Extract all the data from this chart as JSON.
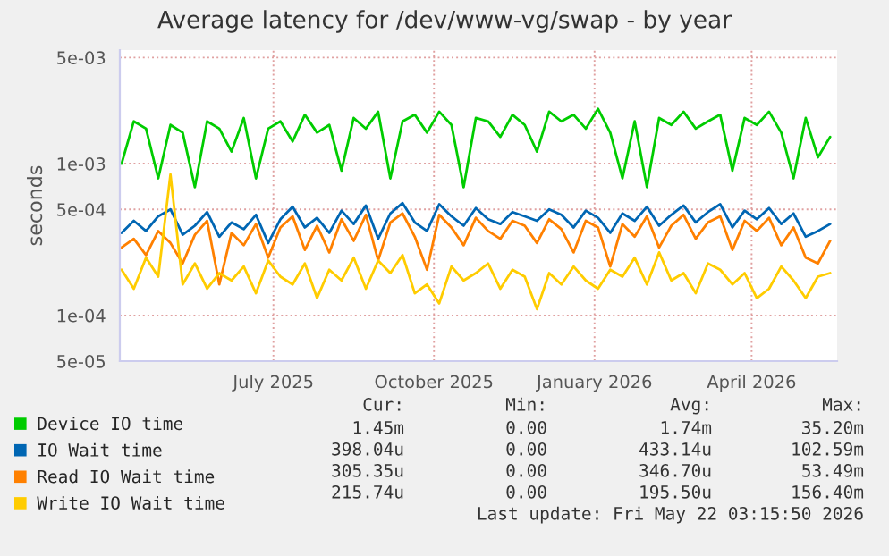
{
  "chart_data": {
    "type": "line",
    "title": "Average latency for /dev/www-vg/swap - by year",
    "ylabel": "seconds",
    "x": [
      "2025-04-05",
      "2025-04-12",
      "2025-04-19",
      "2025-04-26",
      "2025-05-03",
      "2025-05-10",
      "2025-05-17",
      "2025-05-24",
      "2025-05-31",
      "2025-06-07",
      "2025-06-14",
      "2025-06-21",
      "2025-06-28",
      "2025-07-05",
      "2025-07-12",
      "2025-07-19",
      "2025-07-26",
      "2025-08-02",
      "2025-08-09",
      "2025-08-16",
      "2025-08-23",
      "2025-08-30",
      "2025-09-06",
      "2025-09-13",
      "2025-09-20",
      "2025-09-27",
      "2025-10-04",
      "2025-10-11",
      "2025-10-18",
      "2025-10-25",
      "2025-11-01",
      "2025-11-08",
      "2025-11-15",
      "2025-11-22",
      "2025-11-29",
      "2025-12-06",
      "2025-12-13",
      "2025-12-20",
      "2025-12-27",
      "2026-01-03",
      "2026-01-10",
      "2026-01-17",
      "2026-01-24",
      "2026-01-31",
      "2026-02-07",
      "2026-02-14",
      "2026-02-21",
      "2026-02-28",
      "2026-03-07",
      "2026-03-14",
      "2026-03-21",
      "2026-03-28",
      "2026-04-04",
      "2026-04-11",
      "2026-04-18",
      "2026-04-25",
      "2026-05-02",
      "2026-05-09",
      "2026-05-16"
    ],
    "series": [
      {
        "name": "Device IO time",
        "color": "#00cc00",
        "values": [
          0.001,
          0.0019,
          0.0017,
          0.0008,
          0.0018,
          0.0016,
          0.0007,
          0.0019,
          0.0017,
          0.0012,
          0.002,
          0.0008,
          0.0017,
          0.0019,
          0.0014,
          0.0021,
          0.0016,
          0.0018,
          0.0009,
          0.002,
          0.0017,
          0.0022,
          0.0008,
          0.0019,
          0.0021,
          0.0016,
          0.0022,
          0.0018,
          0.0007,
          0.002,
          0.0019,
          0.0015,
          0.0021,
          0.0018,
          0.0012,
          0.0022,
          0.0019,
          0.0021,
          0.0017,
          0.0023,
          0.0016,
          0.0008,
          0.0019,
          0.0007,
          0.002,
          0.0018,
          0.0022,
          0.0017,
          0.0019,
          0.0021,
          0.0009,
          0.002,
          0.0018,
          0.0022,
          0.0016,
          0.0008,
          0.002,
          0.0011,
          0.0015
        ]
      },
      {
        "name": "IO Wait time",
        "color": "#0066b3",
        "values": [
          0.00035,
          0.00042,
          0.00036,
          0.00045,
          0.0005,
          0.00034,
          0.00039,
          0.00048,
          0.00033,
          0.00041,
          0.00037,
          0.00046,
          0.0003,
          0.00043,
          0.00052,
          0.00038,
          0.00044,
          0.00035,
          0.00049,
          0.0004,
          0.00053,
          0.00032,
          0.00047,
          0.00055,
          0.00041,
          0.00036,
          0.00054,
          0.00045,
          0.00039,
          0.00051,
          0.00043,
          0.0004,
          0.00048,
          0.00045,
          0.00042,
          0.0005,
          0.00046,
          0.00038,
          0.00049,
          0.00044,
          0.00035,
          0.00047,
          0.00042,
          0.00052,
          0.00039,
          0.00046,
          0.00053,
          0.00041,
          0.00048,
          0.00054,
          0.00038,
          0.00049,
          0.00043,
          0.00051,
          0.0004,
          0.00047,
          0.00033,
          0.00036,
          0.0004
        ]
      },
      {
        "name": "Read IO Wait time",
        "color": "#ff8000",
        "values": [
          0.00028,
          0.00032,
          0.00025,
          0.00036,
          0.0003,
          0.00022,
          0.00034,
          0.00042,
          0.00016,
          0.00035,
          0.00029,
          0.0004,
          0.00024,
          0.00038,
          0.00045,
          0.00027,
          0.00039,
          0.00026,
          0.00043,
          0.00031,
          0.00046,
          0.00023,
          0.00041,
          0.00047,
          0.00033,
          0.0002,
          0.00046,
          0.00038,
          0.00029,
          0.00044,
          0.00036,
          0.00032,
          0.00042,
          0.00039,
          0.0003,
          0.00043,
          0.00037,
          0.00026,
          0.00042,
          0.00038,
          0.00021,
          0.0004,
          0.00033,
          0.00045,
          0.00028,
          0.00039,
          0.00046,
          0.00032,
          0.00041,
          0.00045,
          0.00027,
          0.00042,
          0.00036,
          0.00044,
          0.00029,
          0.00038,
          0.00024,
          0.00022,
          0.00031
        ]
      },
      {
        "name": "Write IO Wait time",
        "color": "#ffcc00",
        "values": [
          0.0002,
          0.00015,
          0.00024,
          0.00018,
          0.00085,
          0.00016,
          0.00022,
          0.00015,
          0.00019,
          0.00017,
          0.00021,
          0.00014,
          0.00023,
          0.00018,
          0.00016,
          0.00022,
          0.00013,
          0.0002,
          0.00017,
          0.00024,
          0.00015,
          0.00023,
          0.00019,
          0.00025,
          0.00014,
          0.00016,
          0.00012,
          0.00021,
          0.00017,
          0.00019,
          0.00022,
          0.00015,
          0.0002,
          0.00018,
          0.00011,
          0.00019,
          0.00016,
          0.00021,
          0.00017,
          0.00015,
          0.0002,
          0.00018,
          0.00024,
          0.00016,
          0.00026,
          0.00017,
          0.00019,
          0.00014,
          0.00022,
          0.0002,
          0.00016,
          0.00019,
          0.00013,
          0.00015,
          0.00021,
          0.00017,
          0.00013,
          0.00018,
          0.00019
        ]
      }
    ],
    "log": "y",
    "ylim": [
      5e-05,
      0.0056
    ],
    "yticks": [
      {
        "value": 5e-05,
        "label": "5e-05"
      },
      {
        "value": 0.0001,
        "label": "1e-04"
      },
      {
        "value": 0.0005,
        "label": "5e-04"
      },
      {
        "value": 0.001,
        "label": "1e-03"
      },
      {
        "value": 0.005,
        "label": "5e-03"
      }
    ],
    "xlim": [
      "2025-04-04",
      "2026-05-20"
    ],
    "xticks": [
      {
        "value": "2025-07-01",
        "label": "July 2025"
      },
      {
        "value": "2025-10-01",
        "label": "October 2025"
      },
      {
        "value": "2026-01-01",
        "label": "January 2026"
      },
      {
        "value": "2026-04-01",
        "label": "April 2026"
      }
    ],
    "grid": true,
    "legend": "bottom",
    "marker": "none",
    "line_style": "solid",
    "annotations": [
      "Cur:",
      "Min:",
      "Avg:",
      "Max:",
      "1.45m",
      "0.00",
      "1.74m",
      "35.20m",
      "398.04u",
      "0.00",
      "433.14u",
      "102.59m",
      "305.35u",
      "0.00",
      "346.70u",
      "53.49m",
      "215.74u",
      "0.00",
      "195.50u",
      "156.40m",
      "Last update: Fri May 22 03:15:50 2026"
    ]
  }
}
